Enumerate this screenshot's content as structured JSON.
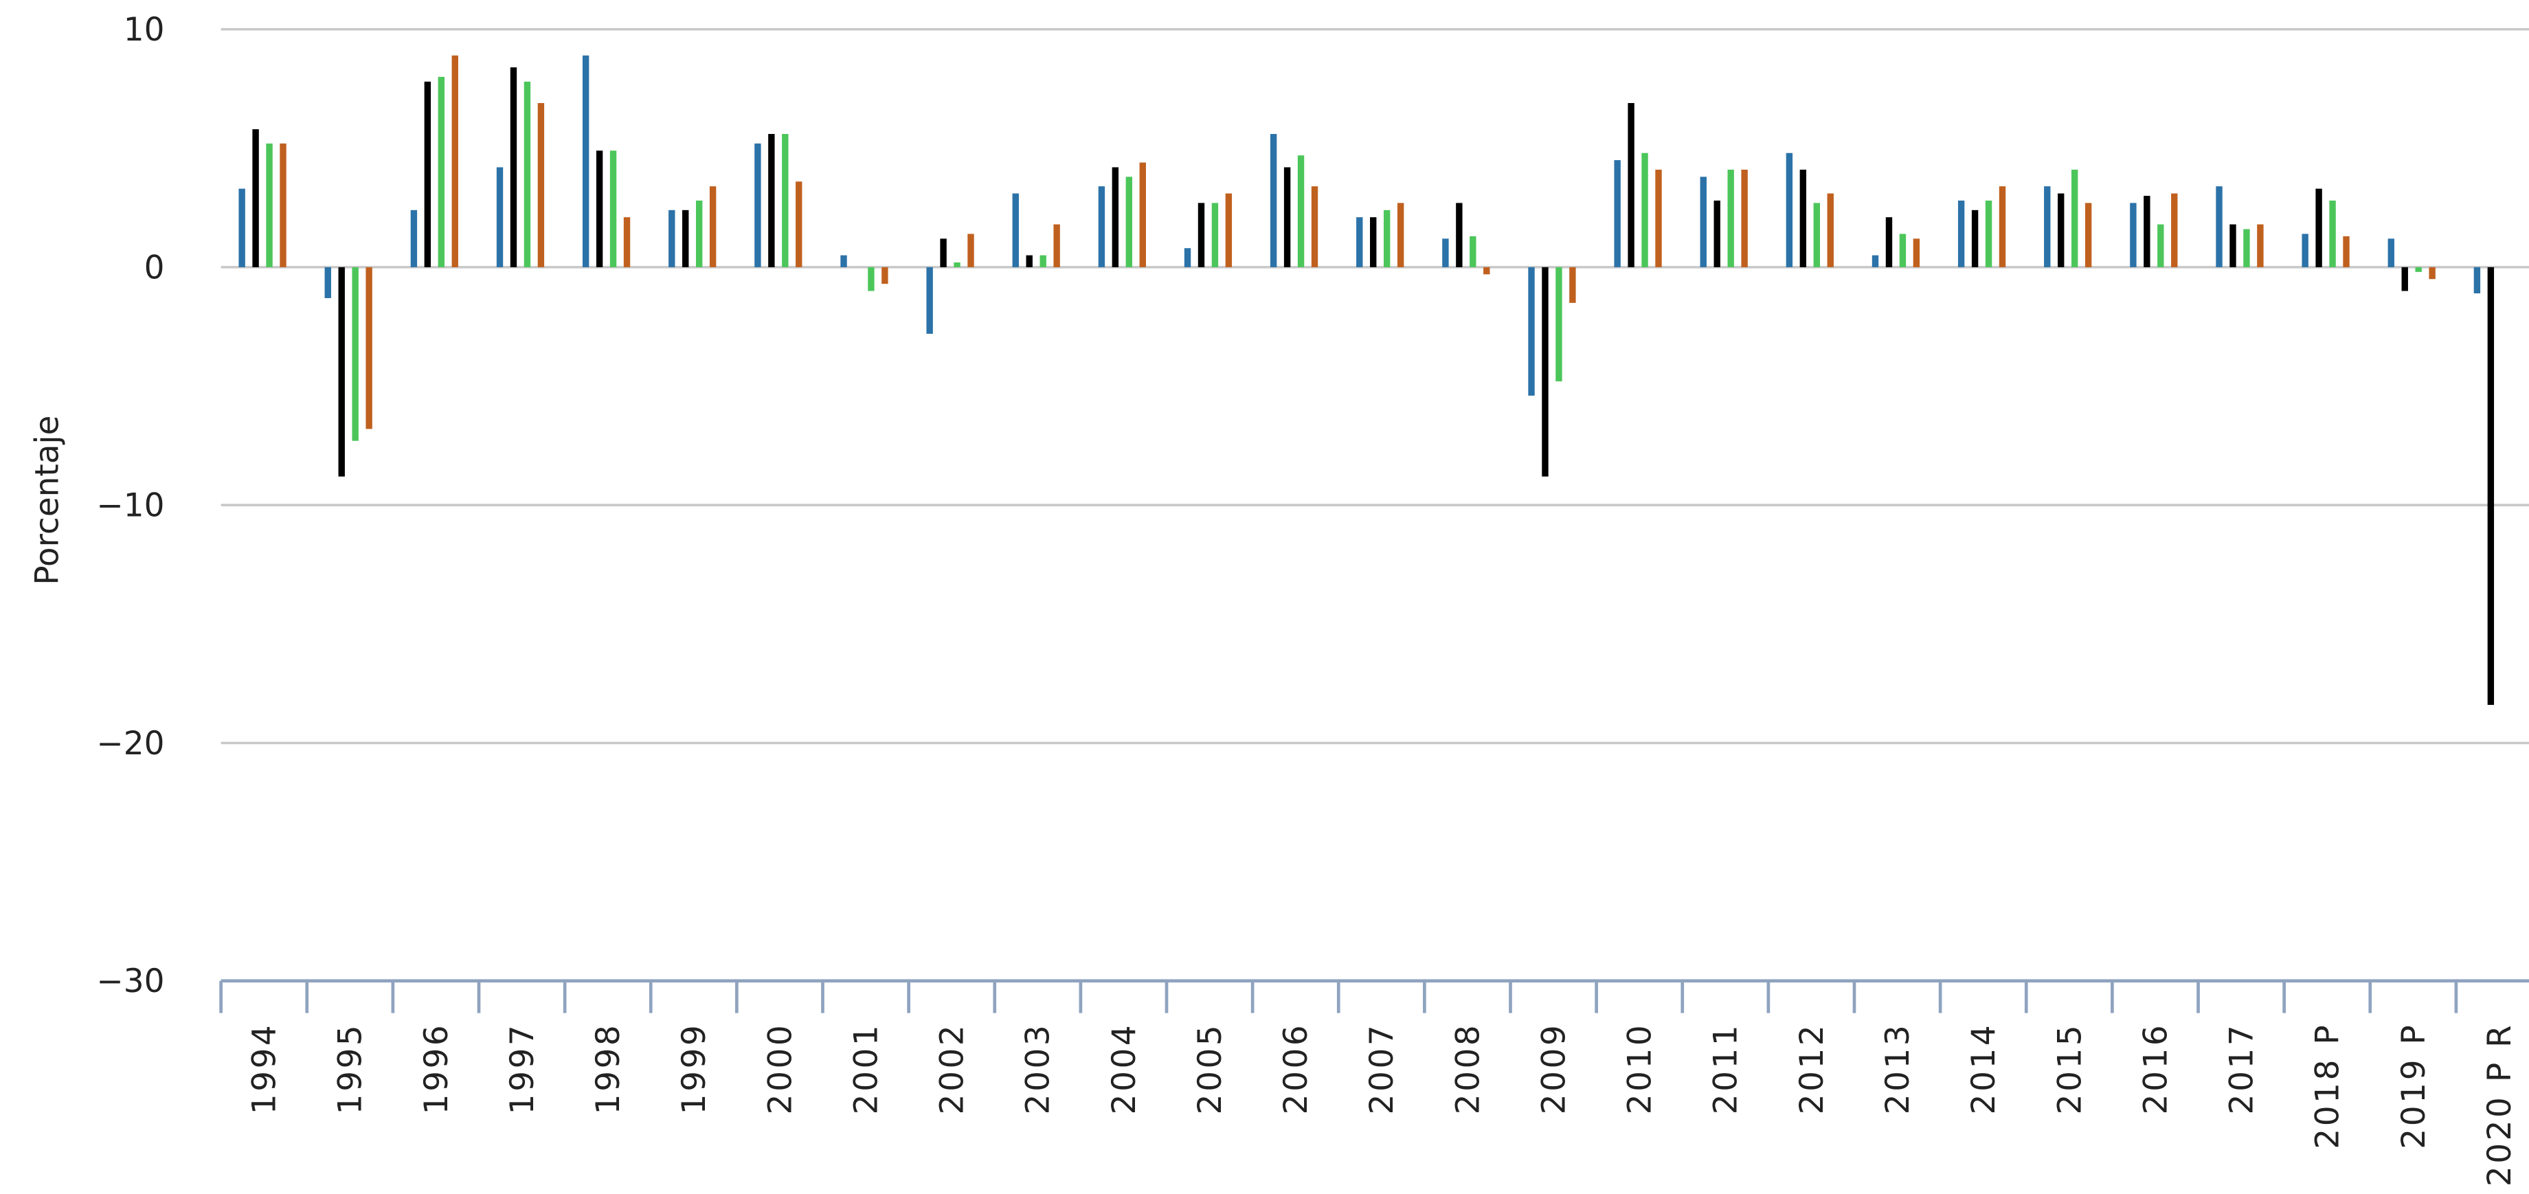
{
  "chart_data": {
    "type": "bar",
    "y_label": "Porcentaje",
    "categories": [
      "1994",
      "1995",
      "1996",
      "1997",
      "1998",
      "1999",
      "2000",
      "2001",
      "2002",
      "2003",
      "2004",
      "2005",
      "2006",
      "2007",
      "2008",
      "2009",
      "2010",
      "2011",
      "2012",
      "2013",
      "2014",
      "2015",
      "2016",
      "2017",
      "2018 P",
      "2019 P",
      "2020 P R"
    ],
    "series": [
      {
        "color": "#2b72a8",
        "values": [
          3.3,
          -1.3,
          2.4,
          4.2,
          8.9,
          2.4,
          5.2,
          0.5,
          -2.8,
          3.1,
          3.4,
          0.8,
          5.6,
          2.1,
          1.2,
          -5.4,
          4.5,
          3.8,
          4.8,
          0.5,
          2.8,
          3.4,
          2.7,
          3.4,
          1.4,
          1.2,
          -1.1
        ]
      },
      {
        "color": "#000000",
        "values": [
          5.8,
          -8.8,
          7.8,
          8.4,
          4.9,
          2.4,
          5.6,
          0.0,
          1.2,
          0.5,
          4.2,
          2.7,
          4.2,
          2.1,
          2.7,
          -8.8,
          6.9,
          2.8,
          4.1,
          2.1,
          2.4,
          3.1,
          3.0,
          1.8,
          3.3,
          -1.0,
          -18.4
        ]
      },
      {
        "color": "#4cc65a",
        "values": [
          5.2,
          -7.3,
          8.0,
          7.8,
          4.9,
          2.8,
          5.6,
          -1.0,
          0.2,
          0.5,
          3.8,
          2.7,
          4.7,
          2.4,
          1.3,
          -4.8,
          4.8,
          4.1,
          2.7,
          1.4,
          2.8,
          4.1,
          1.8,
          1.6,
          2.8,
          -0.2,
          null
        ]
      },
      {
        "color": "#c0601f",
        "values": [
          5.2,
          -6.8,
          8.9,
          6.9,
          2.1,
          3.4,
          3.6,
          -0.7,
          1.4,
          1.8,
          4.4,
          3.1,
          3.4,
          2.7,
          -0.3,
          -1.5,
          4.1,
          4.1,
          3.1,
          1.2,
          3.4,
          2.7,
          3.1,
          1.8,
          1.3,
          -0.5,
          null
        ]
      }
    ],
    "ylim": [
      -30,
      10
    ],
    "yticks": [
      {
        "value": -30,
        "label": "−30"
      },
      {
        "value": -20,
        "label": "−20"
      },
      {
        "value": -10,
        "label": "−10"
      },
      0,
      10
    ],
    "grid": true
  }
}
